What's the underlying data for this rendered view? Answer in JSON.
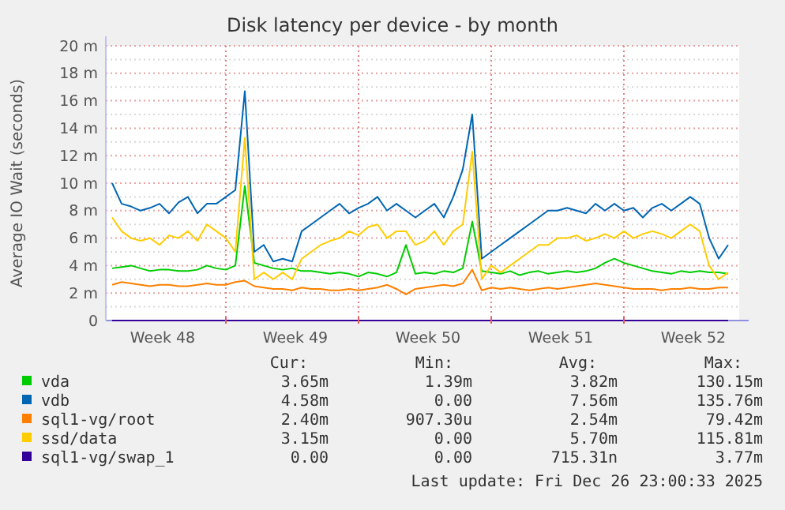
{
  "chart_data": {
    "type": "line",
    "title": "Disk latency per device - by month",
    "ylabel": "Average IO Wait (seconds)",
    "x": [
      "2025-11-25T00:00",
      "2025-11-25T12:00",
      "2025-11-26T00:00",
      "2025-11-26T12:00",
      "2025-11-27T00:00",
      "2025-11-27T12:00",
      "2025-11-28T00:00",
      "2025-11-28T12:00",
      "2025-11-29T00:00",
      "2025-11-29T12:00",
      "2025-11-30T00:00",
      "2025-11-30T12:00",
      "2025-12-01T00:00",
      "2025-12-01T12:00",
      "2025-12-02T00:00",
      "2025-12-02T12:00",
      "2025-12-03T00:00",
      "2025-12-03T12:00",
      "2025-12-04T00:00",
      "2025-12-04T12:00",
      "2025-12-05T00:00",
      "2025-12-05T12:00",
      "2025-12-06T00:00",
      "2025-12-06T12:00",
      "2025-12-07T00:00",
      "2025-12-07T12:00",
      "2025-12-08T00:00",
      "2025-12-08T12:00",
      "2025-12-09T00:00",
      "2025-12-09T12:00",
      "2025-12-10T00:00",
      "2025-12-10T12:00",
      "2025-12-11T00:00",
      "2025-12-11T12:00",
      "2025-12-12T00:00",
      "2025-12-12T12:00",
      "2025-12-13T00:00",
      "2025-12-13T12:00",
      "2025-12-14T00:00",
      "2025-12-14T12:00",
      "2025-12-15T00:00",
      "2025-12-15T12:00",
      "2025-12-16T00:00",
      "2025-12-16T12:00",
      "2025-12-17T00:00",
      "2025-12-17T12:00",
      "2025-12-18T00:00",
      "2025-12-18T12:00",
      "2025-12-19T00:00",
      "2025-12-19T12:00",
      "2025-12-20T00:00",
      "2025-12-20T12:00",
      "2025-12-21T00:00",
      "2025-12-21T12:00",
      "2025-12-22T00:00",
      "2025-12-22T12:00",
      "2025-12-23T00:00",
      "2025-12-23T12:00",
      "2025-12-24T00:00",
      "2025-12-24T12:00",
      "2025-12-25T00:00",
      "2025-12-25T12:00",
      "2025-12-26T00:00",
      "2025-12-26T12:00",
      "2025-12-27T00:00",
      "2025-12-27T12:00"
    ],
    "series": [
      {
        "name": "vda",
        "color": "#00cc00",
        "values": [
          3.8,
          3.9,
          4,
          3.8,
          3.6,
          3.7,
          3.7,
          3.6,
          3.6,
          3.7,
          4,
          3.8,
          3.7,
          4,
          9.8,
          4.2,
          4,
          3.8,
          3.7,
          3.8,
          3.6,
          3.6,
          3.5,
          3.4,
          3.5,
          3.4,
          3.2,
          3.5,
          3.4,
          3.2,
          3.5,
          5.5,
          3.4,
          3.5,
          3.4,
          3.6,
          3.5,
          3.8,
          7.2,
          3.6,
          3.5,
          3.4,
          3.6,
          3.3,
          3.5,
          3.6,
          3.4,
          3.5,
          3.6,
          3.5,
          3.6,
          3.8,
          4.2,
          4.5,
          4.2,
          4,
          3.8,
          3.6,
          3.5,
          3.4,
          3.6,
          3.5,
          3.6,
          3.5,
          3.5,
          3.4
        ]
      },
      {
        "name": "vdb",
        "color": "#0066b3",
        "values": [
          10,
          8.5,
          8.3,
          8,
          8.2,
          8.5,
          7.8,
          8.6,
          9,
          7.8,
          8.5,
          8.5,
          9,
          9.5,
          16.7,
          5,
          5.5,
          4.3,
          4.5,
          4.3,
          6.5,
          7,
          7.5,
          8,
          8.5,
          7.8,
          8.2,
          8.5,
          9,
          8,
          8.5,
          8,
          7.5,
          8,
          8.5,
          7.5,
          9,
          11,
          15,
          4.5,
          5,
          5.5,
          6,
          6.5,
          7,
          7.5,
          8,
          8,
          8.2,
          8,
          7.8,
          8.5,
          8,
          8.5,
          8,
          8.2,
          7.5,
          8.2,
          8.5,
          8,
          8.5,
          9,
          8.5,
          6,
          4.5,
          5.5
        ]
      },
      {
        "name": "sql1-vg/root",
        "color": "#ff8000",
        "values": [
          2.6,
          2.8,
          2.7,
          2.6,
          2.5,
          2.6,
          2.6,
          2.5,
          2.5,
          2.6,
          2.7,
          2.6,
          2.6,
          2.8,
          2.9,
          2.5,
          2.4,
          2.3,
          2.3,
          2.2,
          2.4,
          2.3,
          2.3,
          2.2,
          2.2,
          2.3,
          2.2,
          2.3,
          2.4,
          2.6,
          2.3,
          1.9,
          2.3,
          2.4,
          2.5,
          2.6,
          2.5,
          2.7,
          3.7,
          2.2,
          2.4,
          2.3,
          2.4,
          2.3,
          2.2,
          2.3,
          2.4,
          2.3,
          2.4,
          2.5,
          2.6,
          2.7,
          2.6,
          2.5,
          2.4,
          2.3,
          2.3,
          2.3,
          2.2,
          2.3,
          2.3,
          2.4,
          2.3,
          2.3,
          2.4,
          2.4
        ]
      },
      {
        "name": "ssd/data",
        "color": "#ffcc00",
        "values": [
          7.5,
          6.5,
          6,
          5.8,
          6,
          5.5,
          6.2,
          6,
          6.5,
          5.8,
          7,
          6.5,
          6,
          5,
          13.3,
          3,
          3.5,
          3,
          3.5,
          3,
          4.5,
          5,
          5.5,
          5.8,
          6,
          6.5,
          6.2,
          6.8,
          7,
          6,
          6.5,
          6.5,
          5.5,
          5.8,
          6.5,
          5.5,
          6.5,
          7,
          12.3,
          3,
          4,
          3.5,
          4,
          4.5,
          5,
          5.5,
          5.5,
          6,
          6,
          6.2,
          5.8,
          6,
          6.3,
          6,
          6.5,
          6,
          6.3,
          6.5,
          6.3,
          6,
          6.5,
          7,
          6.5,
          4,
          3,
          3.5
        ]
      },
      {
        "name": "sql1-vg/swap_1",
        "color": "#330099",
        "values": [
          0,
          0,
          0,
          0,
          0,
          0,
          0,
          0,
          0,
          0,
          0,
          0,
          0,
          0,
          0,
          0,
          0,
          0,
          0,
          0,
          0,
          0,
          0,
          0,
          0,
          0,
          0,
          0,
          0,
          0,
          0,
          0,
          0,
          0,
          0,
          0,
          0,
          0,
          0,
          0,
          0,
          0,
          0,
          0,
          0,
          0,
          0,
          0,
          0,
          0,
          0,
          0,
          0,
          0,
          0,
          0,
          0,
          0,
          0,
          0,
          0,
          0,
          0,
          0,
          0,
          0
        ]
      }
    ],
    "xlim": [
      "2025-11-24T16:00",
      "2025-12-28T02:00"
    ],
    "xticks": [
      {
        "value": "2025-11-27T16:00",
        "label": "Week 48"
      },
      {
        "value": "2025-12-01T00:00",
        "label": null
      },
      {
        "value": "2025-12-04T16:00",
        "label": "Week 49"
      },
      {
        "value": "2025-12-08T00:00",
        "label": null
      },
      {
        "value": "2025-12-11T16:00",
        "label": "Week 50"
      },
      {
        "value": "2025-12-15T00:00",
        "label": null
      },
      {
        "value": "2025-12-18T16:00",
        "label": "Week 51"
      },
      {
        "value": "2025-12-22T00:00",
        "label": null
      },
      {
        "value": "2025-12-25T16:00",
        "label": "Week 52"
      }
    ],
    "ylim": [
      0,
      20
    ],
    "yticks": [
      0,
      {
        "value": 1,
        "label": null
      },
      {
        "value": 2,
        "label": "2 m"
      },
      {
        "value": 3,
        "label": null
      },
      {
        "value": 4,
        "label": "4 m"
      },
      {
        "value": 5,
        "label": null
      },
      {
        "value": 6,
        "label": "6 m"
      },
      {
        "value": 7,
        "label": null
      },
      {
        "value": 8,
        "label": "8 m"
      },
      {
        "value": 9,
        "label": null
      },
      {
        "value": 10,
        "label": "10 m"
      },
      {
        "value": 11,
        "label": null
      },
      {
        "value": 12,
        "label": "12 m"
      },
      {
        "value": 13,
        "label": null
      },
      {
        "value": 14,
        "label": "14 m"
      },
      {
        "value": 15,
        "label": null
      },
      {
        "value": 16,
        "label": "16 m"
      },
      {
        "value": 17,
        "label": null
      },
      {
        "value": 18,
        "label": "18 m"
      },
      {
        "value": 19,
        "label": null
      },
      {
        "value": 20,
        "label": "20 m"
      }
    ],
    "grid": true,
    "legend": "bottom left",
    "annotations": [
      "Cur:",
      "Min:",
      "Avg:",
      "Max:",
      "3.65m",
      "1.39m",
      "3.82m",
      "130.15m",
      "4.58m",
      "0.00",
      "7.56m",
      "135.76m",
      "2.40m",
      "907.30u",
      "2.54m",
      "79.42m",
      "3.15m",
      "0.00",
      "5.70m",
      "115.81m",
      "0.00",
      "0.00",
      "715.31n",
      "3.77m",
      "Last update: Fri Dec 26 23:00:33 2025"
    ]
  }
}
